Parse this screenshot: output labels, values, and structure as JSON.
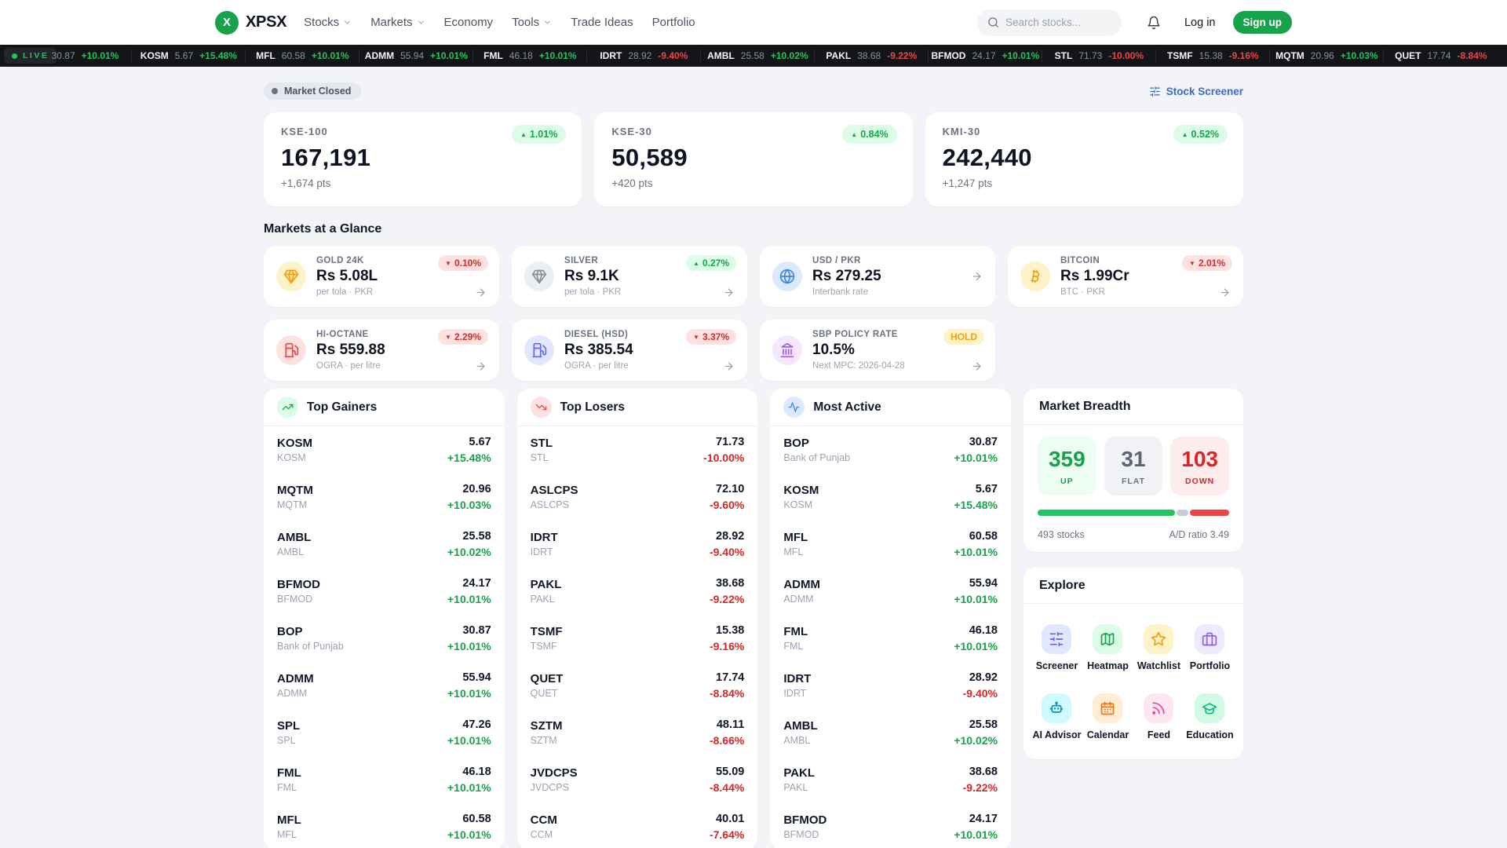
{
  "nav": {
    "logo_letter": "X",
    "brand": "XPSX",
    "items": [
      {
        "label": "Stocks",
        "chevron": true
      },
      {
        "label": "Markets",
        "chevron": true
      },
      {
        "label": "Economy",
        "chevron": false
      },
      {
        "label": "Tools",
        "chevron": true
      },
      {
        "label": "Trade Ideas",
        "chevron": false
      },
      {
        "label": "Portfolio",
        "chevron": false
      }
    ],
    "search_placeholder": "Search stocks...",
    "login_label": "Log in",
    "signup_label": "Sign up"
  },
  "ticker": {
    "live_label": "LIVE",
    "items": [
      {
        "sym": "",
        "price": "30.87",
        "chg": "+10.01%",
        "dir": "up"
      },
      {
        "sym": "KOSM",
        "price": "5.67",
        "chg": "+15.48%",
        "dir": "up"
      },
      {
        "sym": "MFL",
        "price": "60.58",
        "chg": "+10.01%",
        "dir": "up"
      },
      {
        "sym": "ADMM",
        "price": "55.94",
        "chg": "+10.01%",
        "dir": "up"
      },
      {
        "sym": "FML",
        "price": "46.18",
        "chg": "+10.01%",
        "dir": "up"
      },
      {
        "sym": "IDRT",
        "price": "28.92",
        "chg": "-9.40%",
        "dir": "down"
      },
      {
        "sym": "AMBL",
        "price": "25.58",
        "chg": "+10.02%",
        "dir": "up"
      },
      {
        "sym": "PAKL",
        "price": "38.68",
        "chg": "-9.22%",
        "dir": "down"
      },
      {
        "sym": "BFMOD",
        "price": "24.17",
        "chg": "+10.01%",
        "dir": "up"
      },
      {
        "sym": "STL",
        "price": "71.73",
        "chg": "-10.00%",
        "dir": "down"
      },
      {
        "sym": "TSMF",
        "price": "15.38",
        "chg": "-9.16%",
        "dir": "down"
      },
      {
        "sym": "MQTM",
        "price": "20.96",
        "chg": "+10.03%",
        "dir": "up"
      },
      {
        "sym": "QUET",
        "price": "17.74",
        "chg": "-8.84%",
        "dir": "down"
      }
    ]
  },
  "statusbar": {
    "market_status": "Market Closed",
    "screener_link": "Stock Screener"
  },
  "indices": [
    {
      "label": "KSE-100",
      "value": "167,191",
      "sub": "+1,674 pts",
      "badge": "1.01%",
      "dir": "up"
    },
    {
      "label": "KSE-30",
      "value": "50,589",
      "sub": "+420 pts",
      "badge": "0.84%",
      "dir": "up"
    },
    {
      "label": "KMI-30",
      "value": "242,440",
      "sub": "+1,247 pts",
      "badge": "0.52%",
      "dir": "up"
    }
  ],
  "glance": {
    "title": "Markets at a Glance",
    "cards": [
      {
        "label": "GOLD 24K",
        "value": "Rs 5.08L",
        "sub": "per tola · PKR",
        "badge": "0.10%",
        "badge_type": "down",
        "icon": "gem",
        "icon_color": "#f59e0b",
        "icon_bg": "#fef3c7"
      },
      {
        "label": "SILVER",
        "value": "Rs 9.1K",
        "sub": "per tola · PKR",
        "badge": "0.27%",
        "badge_type": "up",
        "icon": "gem",
        "icon_color": "#8792a2",
        "icon_bg": "#eceef2"
      },
      {
        "label": "USD / PKR",
        "value": "Rs 279.25",
        "sub": "Interbank rate",
        "badge": "",
        "badge_type": "",
        "icon": "globe",
        "icon_color": "#3b82f6",
        "icon_bg": "#dbeafe"
      },
      {
        "label": "BITCOIN",
        "value": "Rs 1.99Cr",
        "sub": "BTC · PKR",
        "badge": "2.01%",
        "badge_type": "down",
        "icon": "bitcoin",
        "icon_color": "#f59e0b",
        "icon_bg": "#fef3c7"
      },
      {
        "label": "HI-OCTANE",
        "value": "Rs 559.88",
        "sub": "OGRA · per litre",
        "badge": "2.29%",
        "badge_type": "down",
        "icon": "fuel",
        "icon_color": "#ef4444",
        "icon_bg": "#fee2e2"
      },
      {
        "label": "DIESEL (HSD)",
        "value": "Rs 385.54",
        "sub": "OGRA · per litre",
        "badge": "3.37%",
        "badge_type": "down",
        "icon": "fuel",
        "icon_color": "#6366f1",
        "icon_bg": "#e0e7ff"
      },
      {
        "label": "SBP POLICY RATE",
        "value": "10.5%",
        "sub": "Next MPC: 2026-04-28",
        "badge": "HOLD",
        "badge_type": "hold",
        "icon": "landmark",
        "icon_color": "#a855f7",
        "icon_bg": "#f3e8ff"
      }
    ]
  },
  "lists": [
    {
      "title": "Top Gainers",
      "icon": "trending-up",
      "icon_color": "#16a34a",
      "icon_bg": "#dcfce7",
      "rows": [
        {
          "sym": "KOSM",
          "name": "KOSM",
          "price": "5.67",
          "chg": "+15.48%",
          "dir": "up"
        },
        {
          "sym": "MQTM",
          "name": "MQTM",
          "price": "20.96",
          "chg": "+10.03%",
          "dir": "up"
        },
        {
          "sym": "AMBL",
          "name": "AMBL",
          "price": "25.58",
          "chg": "+10.02%",
          "dir": "up"
        },
        {
          "sym": "BFMOD",
          "name": "BFMOD",
          "price": "24.17",
          "chg": "+10.01%",
          "dir": "up"
        },
        {
          "sym": "BOP",
          "name": "Bank of Punjab",
          "price": "30.87",
          "chg": "+10.01%",
          "dir": "up"
        },
        {
          "sym": "ADMM",
          "name": "ADMM",
          "price": "55.94",
          "chg": "+10.01%",
          "dir": "up"
        },
        {
          "sym": "SPL",
          "name": "SPL",
          "price": "47.26",
          "chg": "+10.01%",
          "dir": "up"
        },
        {
          "sym": "FML",
          "name": "FML",
          "price": "46.18",
          "chg": "+10.01%",
          "dir": "up"
        },
        {
          "sym": "MFL",
          "name": "MFL",
          "price": "60.58",
          "chg": "+10.01%",
          "dir": "up"
        }
      ]
    },
    {
      "title": "Top Losers",
      "icon": "trending-down",
      "icon_color": "#ef4444",
      "icon_bg": "#fee2e2",
      "rows": [
        {
          "sym": "STL",
          "name": "STL",
          "price": "71.73",
          "chg": "-10.00%",
          "dir": "down"
        },
        {
          "sym": "ASLCPS",
          "name": "ASLCPS",
          "price": "72.10",
          "chg": "-9.60%",
          "dir": "down"
        },
        {
          "sym": "IDRT",
          "name": "IDRT",
          "price": "28.92",
          "chg": "-9.40%",
          "dir": "down"
        },
        {
          "sym": "PAKL",
          "name": "PAKL",
          "price": "38.68",
          "chg": "-9.22%",
          "dir": "down"
        },
        {
          "sym": "TSMF",
          "name": "TSMF",
          "price": "15.38",
          "chg": "-9.16%",
          "dir": "down"
        },
        {
          "sym": "QUET",
          "name": "QUET",
          "price": "17.74",
          "chg": "-8.84%",
          "dir": "down"
        },
        {
          "sym": "SZTM",
          "name": "SZTM",
          "price": "48.11",
          "chg": "-8.66%",
          "dir": "down"
        },
        {
          "sym": "JVDCPS",
          "name": "JVDCPS",
          "price": "55.09",
          "chg": "-8.44%",
          "dir": "down"
        },
        {
          "sym": "CCM",
          "name": "CCM",
          "price": "40.01",
          "chg": "-7.64%",
          "dir": "down"
        }
      ]
    },
    {
      "title": "Most Active",
      "icon": "activity",
      "icon_color": "#3b82f6",
      "icon_bg": "#dbeafe",
      "rows": [
        {
          "sym": "BOP",
          "name": "Bank of Punjab",
          "price": "30.87",
          "chg": "+10.01%",
          "dir": "up"
        },
        {
          "sym": "KOSM",
          "name": "KOSM",
          "price": "5.67",
          "chg": "+15.48%",
          "dir": "up"
        },
        {
          "sym": "MFL",
          "name": "MFL",
          "price": "60.58",
          "chg": "+10.01%",
          "dir": "up"
        },
        {
          "sym": "ADMM",
          "name": "ADMM",
          "price": "55.94",
          "chg": "+10.01%",
          "dir": "up"
        },
        {
          "sym": "FML",
          "name": "FML",
          "price": "46.18",
          "chg": "+10.01%",
          "dir": "up"
        },
        {
          "sym": "IDRT",
          "name": "IDRT",
          "price": "28.92",
          "chg": "-9.40%",
          "dir": "down"
        },
        {
          "sym": "AMBL",
          "name": "AMBL",
          "price": "25.58",
          "chg": "+10.02%",
          "dir": "up"
        },
        {
          "sym": "PAKL",
          "name": "PAKL",
          "price": "38.68",
          "chg": "-9.22%",
          "dir": "down"
        },
        {
          "sym": "BFMOD",
          "name": "BFMOD",
          "price": "24.17",
          "chg": "+10.01%",
          "dir": "up"
        }
      ]
    }
  ],
  "breadth": {
    "title": "Market Breadth",
    "up": {
      "value": "359",
      "label": "UP",
      "count": 359
    },
    "flat": {
      "value": "31",
      "label": "FLAT",
      "count": 31
    },
    "down": {
      "value": "103",
      "label": "DOWN",
      "count": 103
    },
    "total_label": "493 stocks",
    "ratio_label": "A/D ratio 3.49",
    "bar_colors": {
      "up": "#22c55e",
      "flat": "#c8cdd5",
      "down": "#ef4444"
    }
  },
  "explore": {
    "title": "Explore",
    "items": [
      {
        "label": "Screener",
        "icon": "sliders",
        "color": "#6366f1",
        "bg": "#e0e7ff"
      },
      {
        "label": "Heatmap",
        "icon": "map",
        "color": "#16a34a",
        "bg": "#dcfce7"
      },
      {
        "label": "Watchlist",
        "icon": "star",
        "color": "#f59e0b",
        "bg": "#fef3c7"
      },
      {
        "label": "Portfolio",
        "icon": "briefcase",
        "color": "#8b5cf6",
        "bg": "#ede9fe"
      },
      {
        "label": "AI Advisor",
        "icon": "bot",
        "color": "#0891b2",
        "bg": "#cffafe"
      },
      {
        "label": "Calendar",
        "icon": "calendar",
        "color": "#f97316",
        "bg": "#ffedd5"
      },
      {
        "label": "Feed",
        "icon": "rss",
        "color": "#ec4899",
        "bg": "#fce7f3"
      },
      {
        "label": "Education",
        "icon": "graduation-cap",
        "color": "#10b981",
        "bg": "#d1fae5"
      }
    ]
  },
  "colors": {
    "accent_green": "#16a34a",
    "accent_red": "#dc2626",
    "link_blue": "#3d6bc6",
    "ticker_bg": "#131519",
    "page_bg": "#f3f4f7"
  }
}
